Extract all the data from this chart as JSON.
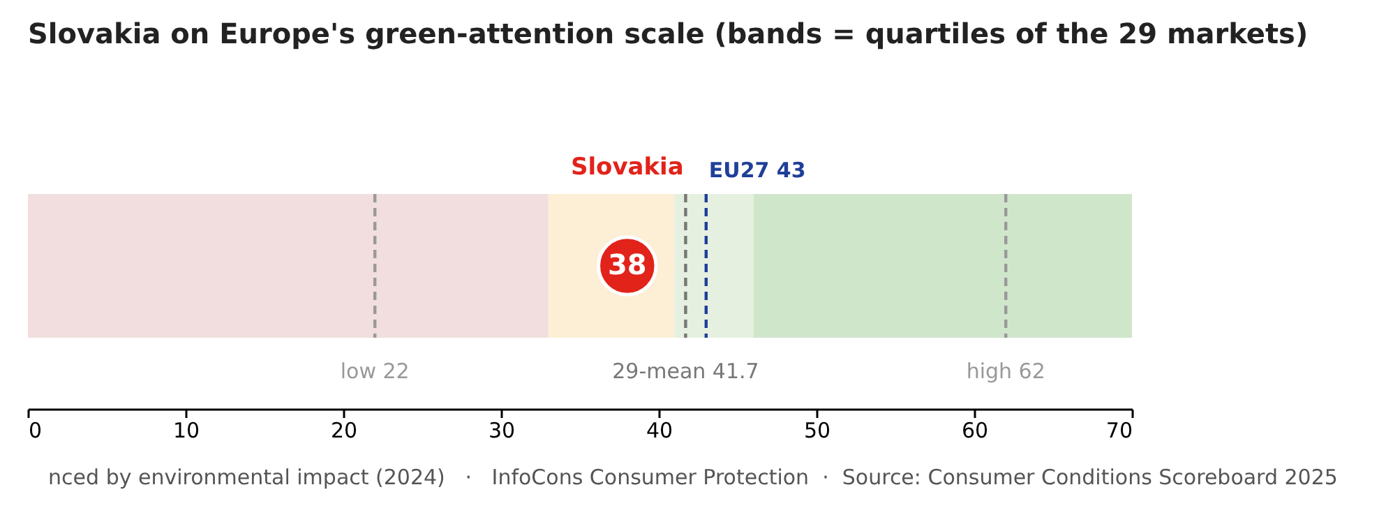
{
  "chart_data": {
    "type": "scatter",
    "title": "Slovakia on Europe's green-attention scale (bands = quartiles of the 29 markets)",
    "orientation": "horizontal",
    "categories": [
      null
    ],
    "xlim": [
      0,
      70
    ],
    "xticks": [
      0,
      10,
      20,
      30,
      40,
      50,
      60,
      70
    ],
    "tick_labels": "x",
    "marker": "circle",
    "data_labels": true,
    "series": [
      {
        "name": "Slovakia",
        "color": "#e2231a",
        "values": [
          38
        ]
      }
    ],
    "bands": [
      {
        "axis": "x",
        "from": 0,
        "to": 33,
        "color": "#f2dede"
      },
      {
        "axis": "x",
        "from": 33,
        "to": 41,
        "color": "#fdeed6"
      },
      {
        "axis": "x",
        "from": 41,
        "to": 46,
        "color": "#e5f0e0"
      },
      {
        "axis": "x",
        "from": 46,
        "to": 70,
        "color": "#cfe6ca"
      }
    ],
    "ref_lines": [
      {
        "axis": "x",
        "value": 22,
        "label": "low 22",
        "color": "#999999",
        "line_style": "dashed"
      },
      {
        "axis": "x",
        "value": 41.7,
        "label": "29-mean 41.7",
        "color": "#777777",
        "line_style": "dashed"
      },
      {
        "axis": "x",
        "value": 43,
        "label": "EU27 43",
        "color": "#1f3f99",
        "line_style": "dashed"
      },
      {
        "axis": "x",
        "value": 62,
        "label": "high 62",
        "color": "#999999",
        "line_style": "dashed"
      }
    ],
    "annotations": [
      "nced by environmental impact (2024)   ·   InfoCons Consumer Protection  ·  Source: Consumer Conditions Scoreboard 2025"
    ]
  }
}
